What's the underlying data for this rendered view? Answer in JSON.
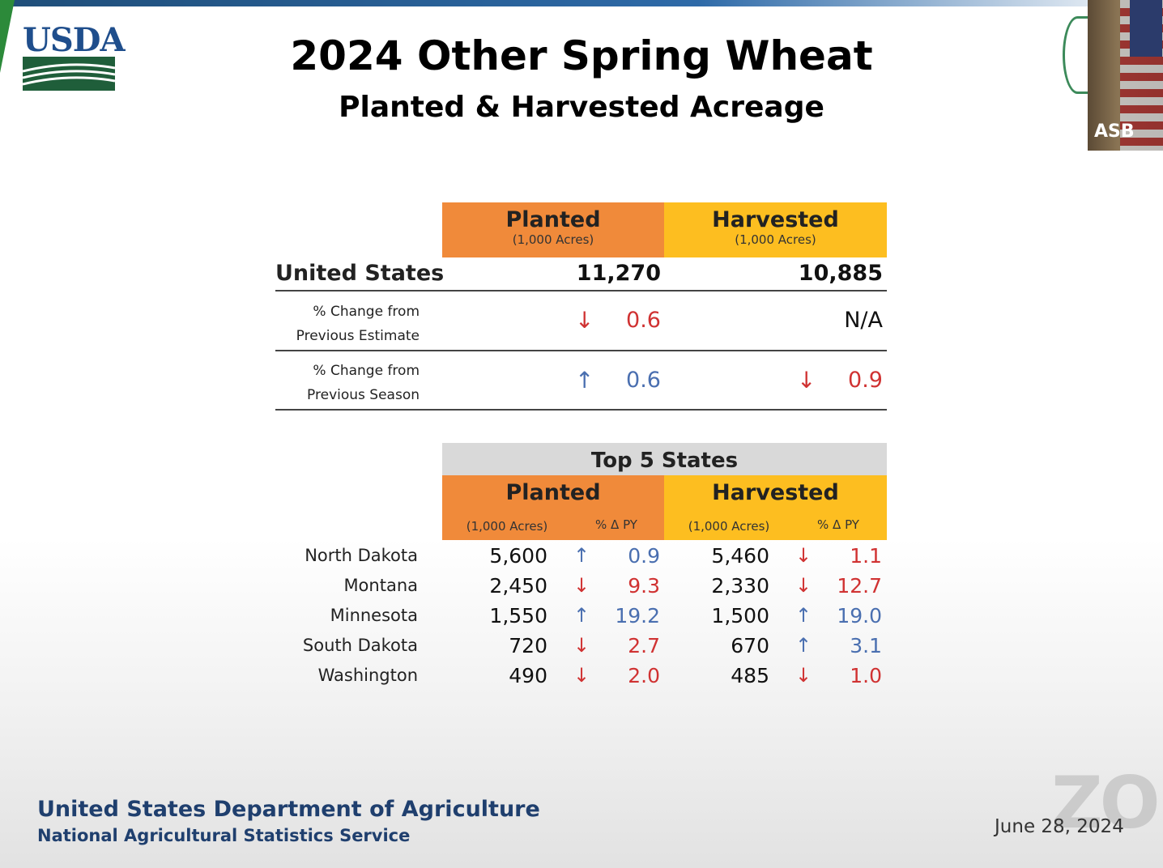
{
  "header": {
    "logo_text": "USDA",
    "title": "2024 Other Spring Wheat",
    "subtitle": "Planted & Harvested Acreage",
    "camera_label": "ASB"
  },
  "summary": {
    "planted_header": "Planted",
    "planted_unit": "(1,000 Acres)",
    "harvested_header": "Harvested",
    "harvested_unit": "(1,000 Acres)",
    "us_label": "United States",
    "us_planted": "11,270",
    "us_harvested": "10,885",
    "prev_estimate_label_1": "% Change from",
    "prev_estimate_label_2": "Previous Estimate",
    "prev_estimate_planted": "0.6",
    "prev_estimate_planted_dir": "down",
    "prev_estimate_harvested": "N/A",
    "prev_season_label_1": "% Change from",
    "prev_season_label_2": "Previous Season",
    "prev_season_planted": "0.6",
    "prev_season_planted_dir": "up",
    "prev_season_harvested": "0.9",
    "prev_season_harvested_dir": "down"
  },
  "top5": {
    "title": "Top 5 States",
    "planted_header": "Planted",
    "harvested_header": "Harvested",
    "acres_unit": "(1,000 Acres)",
    "pct_header": "% Δ PY",
    "rows": [
      {
        "state": "North Dakota",
        "planted": "5,600",
        "planted_dir": "up",
        "planted_pct": "0.9",
        "harvested": "5,460",
        "harvested_dir": "down",
        "harvested_pct": "1.1"
      },
      {
        "state": "Montana",
        "planted": "2,450",
        "planted_dir": "down",
        "planted_pct": "9.3",
        "harvested": "2,330",
        "harvested_dir": "down",
        "harvested_pct": "12.7"
      },
      {
        "state": "Minnesota",
        "planted": "1,550",
        "planted_dir": "up",
        "planted_pct": "19.2",
        "harvested": "1,500",
        "harvested_dir": "up",
        "harvested_pct": "19.0"
      },
      {
        "state": "South Dakota",
        "planted": "720",
        "planted_dir": "down",
        "planted_pct": "2.7",
        "harvested": "670",
        "harvested_dir": "up",
        "harvested_pct": "3.1"
      },
      {
        "state": "Washington",
        "planted": "490",
        "planted_dir": "down",
        "planted_pct": "2.0",
        "harvested": "485",
        "harvested_dir": "down",
        "harvested_pct": "1.0"
      }
    ]
  },
  "footer": {
    "org": "United States Department of Agriculture",
    "agency": "National Agricultural Statistics Service",
    "date": "June 28, 2024",
    "watermark": "ZO"
  },
  "colors": {
    "planted": "#f08a3a",
    "harvested": "#fdbe20",
    "up": "#4a6fb0",
    "down": "#d03232"
  }
}
